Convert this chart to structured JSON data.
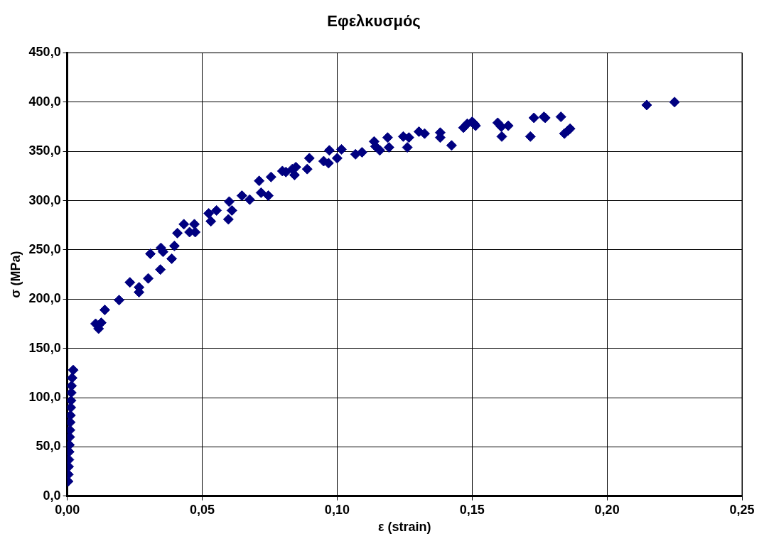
{
  "chart_data": {
    "type": "scatter",
    "title": "Εφελκυσμός",
    "xlabel": "ε (strain)",
    "ylabel": "σ (MPa)",
    "xlim": [
      0,
      0.25
    ],
    "ylim": [
      0,
      450
    ],
    "xticks": [
      {
        "value": 0,
        "label": "0,00"
      },
      {
        "value": 0.05,
        "label": "0,05"
      },
      {
        "value": 0.1,
        "label": "0,10"
      },
      {
        "value": 0.15,
        "label": "0,15"
      },
      {
        "value": 0.2,
        "label": "0,20"
      },
      {
        "value": 0.25,
        "label": "0,25"
      }
    ],
    "yticks": [
      {
        "value": 0,
        "label": "0,0"
      },
      {
        "value": 50,
        "label": "50,0"
      },
      {
        "value": 100,
        "label": "100,0"
      },
      {
        "value": 150,
        "label": "150,0"
      },
      {
        "value": 200,
        "label": "200,0"
      },
      {
        "value": 250,
        "label": "250,0"
      },
      {
        "value": 300,
        "label": "300,0"
      },
      {
        "value": 350,
        "label": "350,0"
      },
      {
        "value": 400,
        "label": "400,0"
      },
      {
        "value": 450,
        "label": "450,0"
      }
    ],
    "grid": true,
    "legend": false,
    "marker": "diamond",
    "series": [
      {
        "color": "#000080",
        "x": [
          0.0003,
          0.0004,
          0.0005,
          0.0006,
          0.0007,
          0.0008,
          0.0009,
          0.001,
          0.0011,
          0.0012,
          0.0013,
          0.0014,
          0.0015,
          0.0016,
          0.0018,
          0.0022,
          0.0105,
          0.0116,
          0.0126,
          0.0139,
          0.0192,
          0.0232,
          0.0266,
          0.0266,
          0.03,
          0.0308,
          0.0345,
          0.0347,
          0.0355,
          0.0387,
          0.0397,
          0.0408,
          0.0432,
          0.0453,
          0.0471,
          0.0474,
          0.0524,
          0.0532,
          0.0553,
          0.0597,
          0.06,
          0.061,
          0.0647,
          0.0676,
          0.0711,
          0.0718,
          0.0745,
          0.0755,
          0.0797,
          0.081,
          0.0834,
          0.0842,
          0.0847,
          0.0889,
          0.0897,
          0.095,
          0.0971,
          0.0968,
          0.1,
          0.1016,
          0.1068,
          0.1092,
          0.1137,
          0.1142,
          0.1158,
          0.1187,
          0.1192,
          0.1245,
          0.126,
          0.1266,
          0.1303,
          0.1324,
          0.1382,
          0.1382,
          0.1424,
          0.1468,
          0.1482,
          0.15,
          0.1508,
          0.1513,
          0.1595,
          0.1608,
          0.161,
          0.1634,
          0.1716,
          0.1729,
          0.1766,
          0.1771,
          0.1829,
          0.1842,
          0.1855,
          0.1863,
          0.2147,
          0.225
        ],
        "values": [
          15,
          22,
          30,
          37,
          45,
          52,
          60,
          67,
          75,
          82,
          90,
          97,
          105,
          112,
          120,
          128,
          175,
          170,
          176,
          189,
          199,
          217,
          212,
          207,
          221,
          246,
          230,
          252,
          248,
          241,
          254,
          267,
          276,
          268,
          276,
          268,
          287,
          279,
          290,
          281,
          299,
          290,
          305,
          301,
          320,
          308,
          305,
          324,
          330,
          329,
          332,
          326,
          334,
          332,
          343,
          340,
          351,
          338,
          343,
          352,
          347,
          349,
          360,
          355,
          351,
          364,
          354,
          365,
          354,
          364,
          370,
          368,
          369,
          364,
          356,
          374,
          378,
          380,
          378,
          376,
          379,
          375,
          365,
          376,
          365,
          384,
          385,
          384,
          385,
          368,
          371,
          373,
          397,
          400
        ]
      }
    ]
  }
}
